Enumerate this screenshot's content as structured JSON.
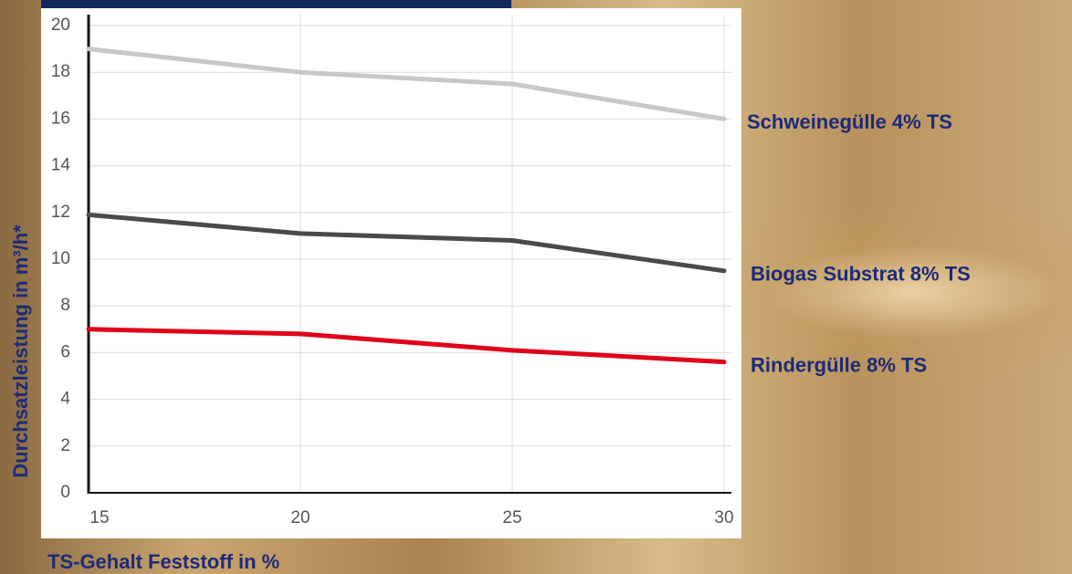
{
  "chart_data": {
    "type": "line",
    "x_label": "TS-Gehalt Feststoff in %",
    "y_label": "Durchsatzleistung in m³/h*",
    "x": [
      15,
      20,
      25,
      30
    ],
    "series": [
      {
        "name": "Schweinegülle 4% TS",
        "color": "#c8c8c8",
        "values": [
          19,
          18,
          17.5,
          16
        ]
      },
      {
        "name": "Biogas Substrat 8% TS",
        "color": "#4a4a4a",
        "values": [
          11.9,
          11.1,
          10.8,
          9.5
        ]
      },
      {
        "name": "Rindergülle 8% TS",
        "color": "#e0001a",
        "values": [
          7,
          6.8,
          6.1,
          5.6
        ]
      }
    ],
    "xlim": [
      15,
      30
    ],
    "xticks": [
      15,
      20,
      25,
      30
    ],
    "ylim": [
      0,
      20
    ],
    "yticks": [
      0,
      2,
      4,
      6,
      8,
      10,
      12,
      14,
      16,
      18,
      20
    ],
    "grid": true
  }
}
